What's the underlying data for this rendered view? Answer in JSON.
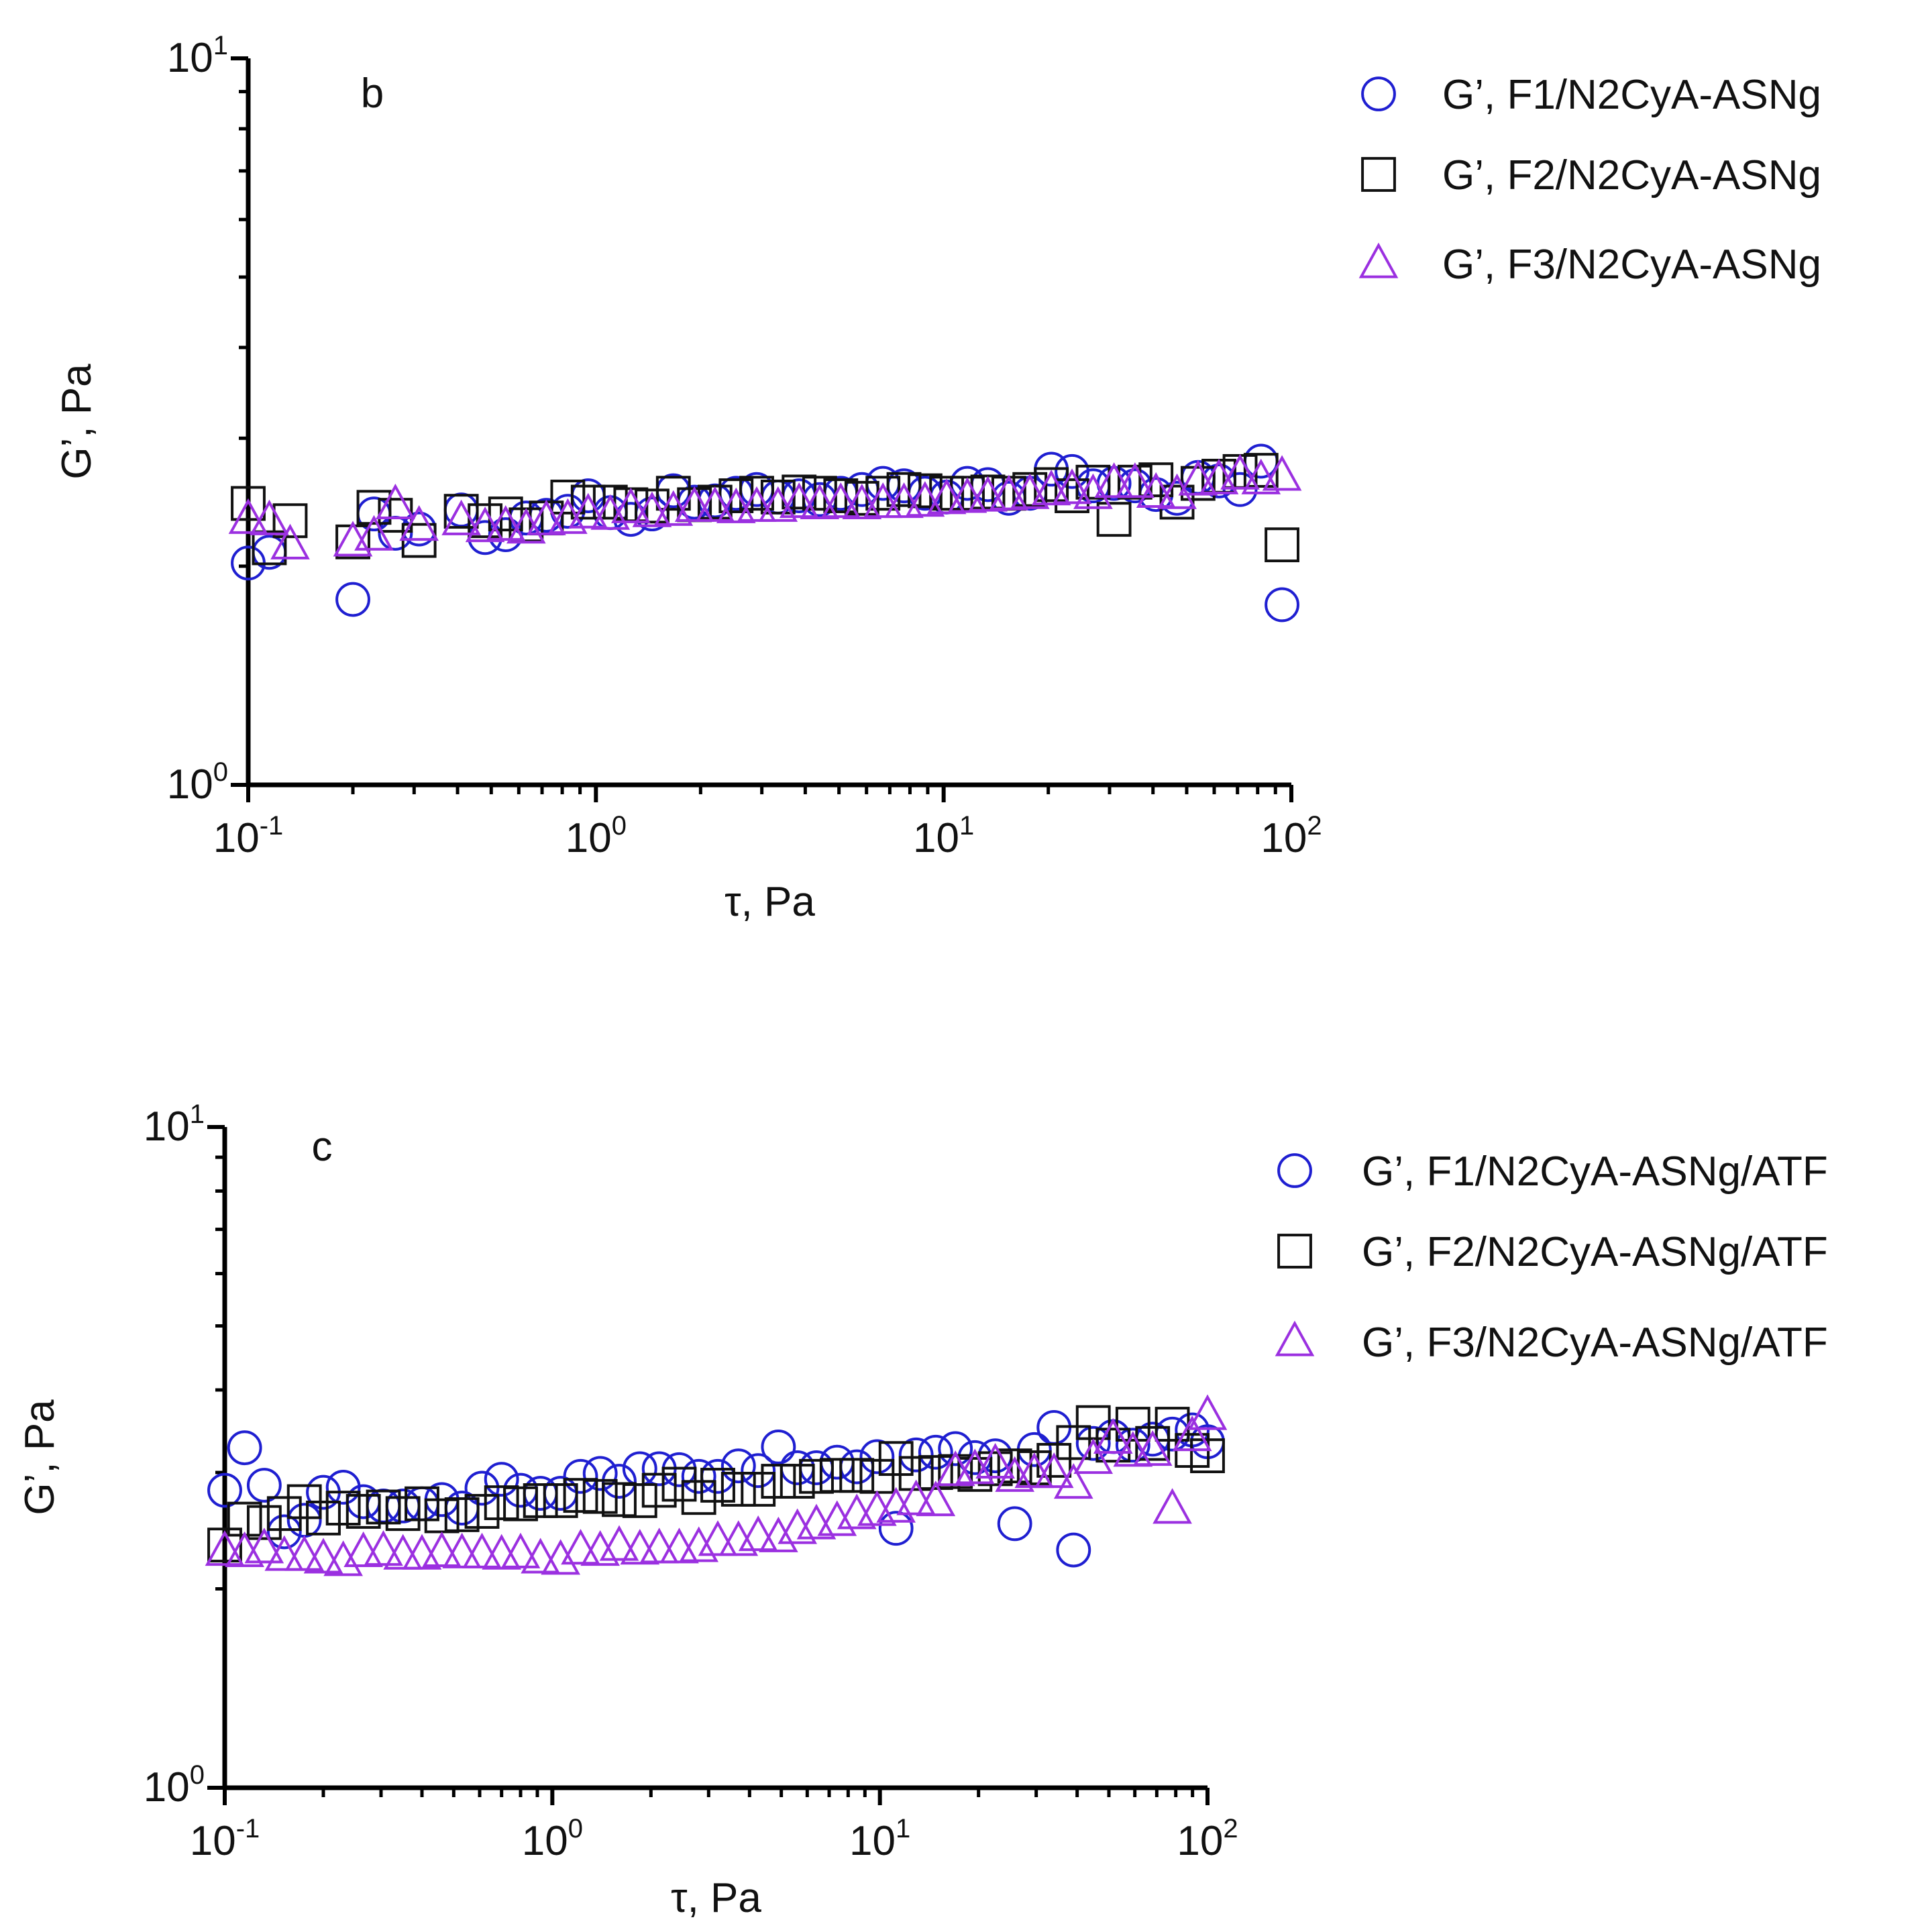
{
  "colors": {
    "f1": "#1f1fd1",
    "f2": "#111111",
    "f3": "#9b30e0",
    "axis": "#000000"
  },
  "chart_data": [
    {
      "type": "scatter",
      "panel_label": "b",
      "xscale": "log",
      "yscale": "log",
      "xlim": [
        0.1,
        100
      ],
      "ylim": [
        1,
        10
      ],
      "xlabel": "τ, Pa",
      "ylabel": "G’, Pa",
      "x_ticks": [
        {
          "base": "10",
          "exp": "-1"
        },
        {
          "base": "10",
          "exp": "0"
        },
        {
          "base": "10",
          "exp": "1"
        },
        {
          "base": "10",
          "exp": "2"
        }
      ],
      "y_ticks": [
        {
          "base": "10",
          "exp": "0"
        },
        {
          "base": "10",
          "exp": "1"
        }
      ],
      "legend_position": "top-right (outside)",
      "series": [
        {
          "name": "G’, F1/N2CyA-ASNg",
          "marker": "circle",
          "color_key": "f1",
          "x": [
            0.1,
            0.115,
            0.2,
            0.23,
            0.265,
            0.31,
            0.41,
            0.48,
            0.55,
            0.63,
            0.72,
            0.83,
            0.95,
            1.1,
            1.26,
            1.45,
            1.67,
            1.92,
            2.2,
            2.53,
            2.9,
            3.34,
            3.84,
            4.4,
            5.06,
            5.82,
            6.69,
            7.69,
            8.84,
            10.2,
            11.7,
            13.4,
            15.4,
            17.7,
            20.4,
            23.4,
            26.9,
            30.9,
            35.5,
            40.8,
            46.9,
            53.9,
            61.9,
            71.2,
            81.8,
            94
          ],
          "y": [
            2.02,
            2.09,
            1.8,
            2.36,
            2.22,
            2.25,
            2.39,
            2.19,
            2.21,
            2.33,
            2.35,
            2.38,
            2.5,
            2.37,
            2.32,
            2.36,
            2.54,
            2.45,
            2.46,
            2.52,
            2.55,
            2.49,
            2.5,
            2.47,
            2.52,
            2.55,
            2.6,
            2.58,
            2.52,
            2.49,
            2.6,
            2.59,
            2.48,
            2.52,
            2.72,
            2.7,
            2.58,
            2.6,
            2.58,
            2.51,
            2.48,
            2.65,
            2.62,
            2.55,
            2.79,
            1.77
          ]
        },
        {
          "name": "G’, F2/N2CyA-ASNg",
          "marker": "square",
          "color_key": "f2",
          "x": [
            0.1,
            0.115,
            0.132,
            0.2,
            0.23,
            0.265,
            0.31,
            0.41,
            0.48,
            0.55,
            0.63,
            0.72,
            0.83,
            0.95,
            1.1,
            1.26,
            1.45,
            1.67,
            1.92,
            2.2,
            2.53,
            2.9,
            3.34,
            3.84,
            4.4,
            5.06,
            5.82,
            6.69,
            7.69,
            8.84,
            10.2,
            11.7,
            13.4,
            15.4,
            17.7,
            20.4,
            23.4,
            26.9,
            30.9,
            35.5,
            40.8,
            46.9,
            53.9,
            61.9,
            71.2,
            81.8,
            94
          ],
          "y": [
            2.44,
            2.12,
            2.31,
            2.16,
            2.41,
            2.35,
            2.17,
            2.38,
            2.31,
            2.36,
            2.28,
            2.33,
            2.49,
            2.45,
            2.45,
            2.43,
            2.42,
            2.52,
            2.43,
            2.45,
            2.5,
            2.52,
            2.49,
            2.53,
            2.52,
            2.5,
            2.48,
            2.52,
            2.55,
            2.54,
            2.52,
            2.52,
            2.53,
            2.52,
            2.55,
            2.59,
            2.5,
            2.61,
            2.32,
            2.61,
            2.63,
            2.45,
            2.6,
            2.66,
            2.7,
            2.71,
            2.14
          ]
        },
        {
          "name": "G’, F3/N2CyA-ASNg",
          "marker": "triangle",
          "color_key": "f3",
          "x": [
            0.1,
            0.115,
            0.132,
            0.2,
            0.23,
            0.265,
            0.31,
            0.41,
            0.48,
            0.55,
            0.63,
            0.72,
            0.83,
            0.95,
            1.1,
            1.26,
            1.45,
            1.67,
            1.92,
            2.2,
            2.53,
            2.9,
            3.34,
            3.84,
            4.4,
            5.06,
            5.82,
            6.69,
            7.69,
            8.84,
            10.2,
            11.7,
            13.4,
            15.4,
            17.7,
            20.4,
            23.4,
            26.9,
            30.9,
            35.5,
            40.8,
            46.9,
            53.9,
            61.9,
            71.2,
            81.8,
            94
          ],
          "y": [
            2.32,
            2.31,
            2.14,
            2.16,
            2.2,
            2.43,
            2.27,
            2.31,
            2.26,
            2.27,
            2.25,
            2.31,
            2.32,
            2.36,
            2.35,
            2.4,
            2.37,
            2.38,
            2.41,
            2.41,
            2.4,
            2.41,
            2.41,
            2.44,
            2.43,
            2.44,
            2.43,
            2.44,
            2.44,
            2.45,
            2.47,
            2.48,
            2.49,
            2.5,
            2.51,
            2.54,
            2.55,
            2.51,
            2.6,
            2.6,
            2.52,
            2.51,
            2.62,
            2.63,
            2.67,
            2.63,
            2.66
          ]
        }
      ]
    },
    {
      "type": "scatter",
      "panel_label": "c",
      "xscale": "log",
      "yscale": "log",
      "xlim": [
        0.1,
        100
      ],
      "ylim": [
        1,
        10
      ],
      "xlabel": "τ, Pa",
      "ylabel": "G’, Pa",
      "x_ticks": [
        {
          "base": "10",
          "exp": "-1"
        },
        {
          "base": "10",
          "exp": "0"
        },
        {
          "base": "10",
          "exp": "1"
        },
        {
          "base": "10",
          "exp": "2"
        }
      ],
      "y_ticks": [
        {
          "base": "10",
          "exp": "0"
        },
        {
          "base": "10",
          "exp": "1"
        }
      ],
      "legend_position": "top-right (outside)",
      "series": [
        {
          "name": "G’, F1/N2CyA-ASNg/ATF",
          "marker": "circle",
          "color_key": "f1",
          "x": [
            0.1,
            0.115,
            0.132,
            0.152,
            0.175,
            0.2,
            0.23,
            0.265,
            0.305,
            0.35,
            0.4,
            0.46,
            0.53,
            0.61,
            0.7,
            0.8,
            0.92,
            1.06,
            1.22,
            1.4,
            1.6,
            1.85,
            2.12,
            2.44,
            2.8,
            3.2,
            3.7,
            4.25,
            4.9,
            5.6,
            6.4,
            7.4,
            8.5,
            9.8,
            11.2,
            12.9,
            14.8,
            17,
            19.5,
            22.5,
            25.8,
            29.6,
            34,
            39,
            44.8,
            51.5,
            59.2,
            68,
            78.1,
            89.8,
            100
          ],
          "y": [
            2.82,
            3.27,
            2.87,
            2.44,
            2.54,
            2.8,
            2.85,
            2.71,
            2.67,
            2.67,
            2.69,
            2.73,
            2.65,
            2.84,
            2.93,
            2.82,
            2.79,
            2.79,
            2.96,
            2.99,
            2.91,
            3.04,
            3.04,
            3.03,
            2.96,
            2.96,
            3.07,
            3.02,
            3.28,
            3.05,
            3.05,
            3.11,
            3.06,
            3.17,
            2.47,
            3.19,
            3.22,
            3.26,
            3.16,
            3.18,
            2.51,
            3.25,
            3.51,
            2.29,
            3.32,
            3.4,
            3.3,
            3.37,
            3.43,
            3.48,
            3.34
          ]
        },
        {
          "name": "G’, F2/N2CyA-ASNg/ATF",
          "marker": "square",
          "color_key": "f2",
          "x": [
            0.1,
            0.115,
            0.132,
            0.152,
            0.175,
            0.2,
            0.23,
            0.265,
            0.305,
            0.35,
            0.4,
            0.46,
            0.53,
            0.61,
            0.7,
            0.8,
            0.92,
            1.06,
            1.22,
            1.4,
            1.6,
            1.85,
            2.12,
            2.44,
            2.8,
            3.2,
            3.7,
            4.25,
            4.9,
            5.6,
            6.4,
            7.4,
            8.5,
            9.8,
            11.2,
            12.9,
            14.8,
            17,
            19.5,
            22.5,
            25.8,
            29.6,
            34,
            39,
            44.8,
            51.5,
            59.2,
            68,
            78.1,
            89.8,
            100
          ],
          "y": [
            2.33,
            2.55,
            2.52,
            2.6,
            2.71,
            2.56,
            2.65,
            2.62,
            2.66,
            2.6,
            2.69,
            2.58,
            2.59,
            2.62,
            2.7,
            2.69,
            2.72,
            2.72,
            2.77,
            2.76,
            2.73,
            2.72,
            2.82,
            2.88,
            2.75,
            2.87,
            2.83,
            2.83,
            2.91,
            2.91,
            2.96,
            2.97,
            2.97,
            2.96,
            3.15,
            2.99,
            3,
            3.01,
            2.98,
            3.04,
            3.07,
            3.05,
            3.13,
            3.33,
            3.57,
            3.3,
            3.55,
            3.32,
            3.55,
            3.24,
            3.18
          ]
        },
        {
          "name": "G’, F3/N2CyA-ASNg/ATF",
          "marker": "triangle",
          "color_key": "f3",
          "x": [
            0.1,
            0.115,
            0.132,
            0.152,
            0.175,
            0.2,
            0.23,
            0.265,
            0.305,
            0.35,
            0.4,
            0.46,
            0.53,
            0.61,
            0.7,
            0.8,
            0.92,
            1.06,
            1.22,
            1.4,
            1.6,
            1.85,
            2.12,
            2.44,
            2.8,
            3.2,
            3.7,
            4.25,
            4.9,
            5.6,
            6.4,
            7.4,
            8.5,
            9.8,
            11.2,
            12.9,
            14.8,
            17,
            19.5,
            22.5,
            25.8,
            29.6,
            34,
            39,
            44.8,
            51.5,
            59.2,
            68,
            78.1,
            89.8,
            100
          ],
          "y": [
            2.28,
            2.27,
            2.3,
            2.24,
            2.24,
            2.22,
            2.2,
            2.27,
            2.28,
            2.25,
            2.25,
            2.27,
            2.26,
            2.26,
            2.25,
            2.26,
            2.22,
            2.21,
            2.29,
            2.28,
            2.32,
            2.29,
            2.3,
            2.3,
            2.31,
            2.36,
            2.36,
            2.4,
            2.39,
            2.46,
            2.5,
            2.53,
            2.59,
            2.62,
            2.65,
            2.72,
            2.71,
            3.01,
            3.03,
            3.09,
            2.95,
            2.99,
            2.99,
            2.88,
            3.14,
            3.37,
            3.22,
            3.23,
            2.64,
            3.4,
            3.66
          ]
        }
      ]
    }
  ]
}
